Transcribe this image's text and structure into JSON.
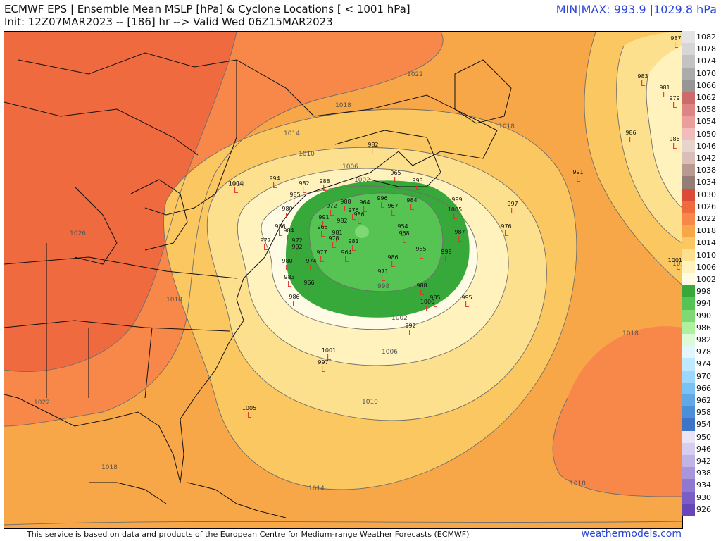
{
  "header": {
    "title": "ECMWF EPS | Ensemble Mean MSLP [hPa] & Cyclone Locations [ < 1001 hPa]",
    "subtitle": "Init: 12Z07MAR2023 -- [186] hr --> Valid Wed 06Z15MAR2023",
    "minmax": "MIN|MAX: 993.9 |1029.8 hPa"
  },
  "footer": {
    "attribution": "This service is based on data and products of the European Centre for Medium-range Weather Forecasts (ECMWF)",
    "site": "weathermodels.com"
  },
  "colorbar": [
    {
      "label": "1082",
      "color": "#e4e4e4"
    },
    {
      "label": "1078",
      "color": "#d6d6d6"
    },
    {
      "label": "1074",
      "color": "#c3c3c3"
    },
    {
      "label": "1070",
      "color": "#ababab"
    },
    {
      "label": "1066",
      "color": "#969696"
    },
    {
      "label": "1062",
      "color": "#cd6b6b"
    },
    {
      "label": "1058",
      "color": "#dd8585"
    },
    {
      "label": "1054",
      "color": "#ea9e9e"
    },
    {
      "label": "1050",
      "color": "#f2bcbc"
    },
    {
      "label": "1046",
      "color": "#e7d4cf"
    },
    {
      "label": "1042",
      "color": "#d8bfb8"
    },
    {
      "label": "1038",
      "color": "#b99a90"
    },
    {
      "label": "1034",
      "color": "#937d76"
    },
    {
      "label": "1030",
      "color": "#db4b38"
    },
    {
      "label": "1026",
      "color": "#ef6a3e"
    },
    {
      "label": "1022",
      "color": "#f7884a"
    },
    {
      "label": "1018",
      "color": "#f8a748"
    },
    {
      "label": "1014",
      "color": "#fbc760"
    },
    {
      "label": "1010",
      "color": "#fde08e"
    },
    {
      "label": "1006",
      "color": "#fff2bd"
    },
    {
      "label": "1002",
      "color": "#fffbe4"
    },
    {
      "label": "998",
      "color": "#37a83a"
    },
    {
      "label": "994",
      "color": "#55c452"
    },
    {
      "label": "990",
      "color": "#7ed873"
    },
    {
      "label": "986",
      "color": "#aef09f"
    },
    {
      "label": "982",
      "color": "#dcfbd6"
    },
    {
      "label": "978",
      "color": "#e2f6ff"
    },
    {
      "label": "974",
      "color": "#bfe9ff"
    },
    {
      "label": "970",
      "color": "#9bd8fb"
    },
    {
      "label": "966",
      "color": "#79c2f2"
    },
    {
      "label": "962",
      "color": "#5ea9e6"
    },
    {
      "label": "958",
      "color": "#4b8fd9"
    },
    {
      "label": "954",
      "color": "#3c75c8"
    },
    {
      "label": "950",
      "color": "#e9e4f6"
    },
    {
      "label": "946",
      "color": "#d6cdef"
    },
    {
      "label": "942",
      "color": "#c0b3e6"
    },
    {
      "label": "938",
      "color": "#a895dc"
    },
    {
      "label": "934",
      "color": "#9078d0"
    },
    {
      "label": "930",
      "color": "#7a5ec5"
    },
    {
      "label": "926",
      "color": "#6646b9"
    }
  ],
  "contour_labels": [
    {
      "text": "1022"
    },
    {
      "text": "1018"
    },
    {
      "text": "1014"
    },
    {
      "text": "1010"
    },
    {
      "text": "1006"
    },
    {
      "text": "1002"
    },
    {
      "text": "998"
    },
    {
      "text": "1002"
    },
    {
      "text": "1006"
    },
    {
      "text": "1010"
    },
    {
      "text": "1014"
    },
    {
      "text": "1018"
    },
    {
      "text": "1018"
    },
    {
      "text": "1018"
    },
    {
      "text": "1022"
    },
    {
      "text": "1026"
    },
    {
      "text": "1018"
    },
    {
      "text": "1018"
    },
    {
      "text": "1014"
    },
    {
      "text": "1010"
    }
  ],
  "cyclones": [
    {
      "v": "987"
    },
    {
      "v": "983"
    },
    {
      "v": "981"
    },
    {
      "v": "979"
    },
    {
      "v": "986"
    },
    {
      "v": "986"
    },
    {
      "v": "982"
    },
    {
      "v": "965"
    },
    {
      "v": "993"
    },
    {
      "v": "991"
    },
    {
      "v": "999"
    },
    {
      "v": "997"
    },
    {
      "v": "1005"
    },
    {
      "v": "976"
    },
    {
      "v": "987"
    },
    {
      "v": "1004"
    },
    {
      "v": "994"
    },
    {
      "v": "982"
    },
    {
      "v": "988"
    },
    {
      "v": "985"
    },
    {
      "v": "988"
    },
    {
      "v": "996"
    },
    {
      "v": "984"
    },
    {
      "v": "980"
    },
    {
      "v": "972"
    },
    {
      "v": "964"
    },
    {
      "v": "967"
    },
    {
      "v": "986"
    },
    {
      "v": "991"
    },
    {
      "v": "976"
    },
    {
      "v": "954"
    },
    {
      "v": "982"
    },
    {
      "v": "986"
    },
    {
      "v": "968"
    },
    {
      "v": "984"
    },
    {
      "v": "965"
    },
    {
      "v": "981"
    },
    {
      "v": "978"
    },
    {
      "v": "972"
    },
    {
      "v": "992"
    },
    {
      "v": "977"
    },
    {
      "v": "980"
    },
    {
      "v": "977"
    },
    {
      "v": "964"
    },
    {
      "v": "981"
    },
    {
      "v": "986"
    },
    {
      "v": "985"
    },
    {
      "v": "999"
    },
    {
      "v": "974"
    },
    {
      "v": "971"
    },
    {
      "v": "983"
    },
    {
      "v": "966"
    },
    {
      "v": "988"
    },
    {
      "v": "986"
    },
    {
      "v": "985"
    },
    {
      "v": "1000"
    },
    {
      "v": "995"
    },
    {
      "v": "992"
    },
    {
      "v": "1001"
    },
    {
      "v": "997"
    },
    {
      "v": "1005"
    },
    {
      "v": "1001"
    }
  ],
  "colors": {
    "minmax_text": "#2a44d8",
    "cyclone_marker": "#e0322e",
    "contour_line": "#6e6e6e",
    "coast_line": "#111111"
  }
}
